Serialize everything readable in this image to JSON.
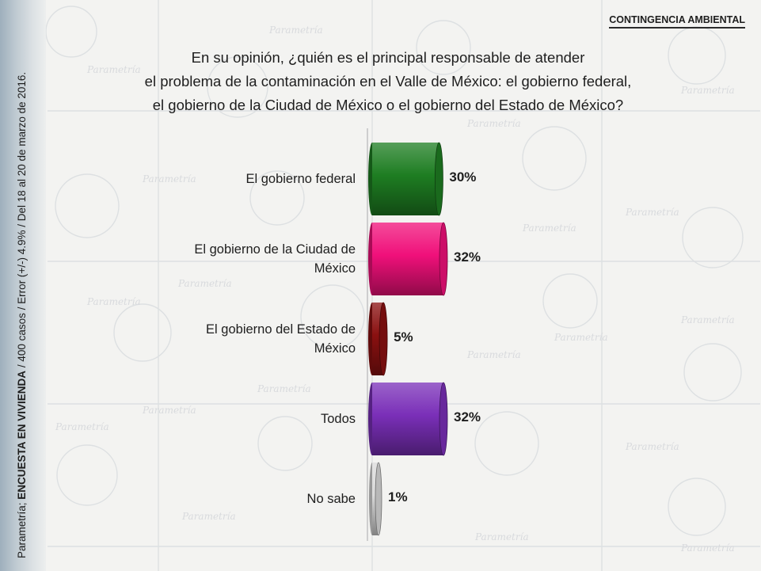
{
  "header": {
    "tag": "CONTINGENCIA AMBIENTAL",
    "question_lines": [
      "En su opinión, ¿quién es el principal responsable de atender",
      "el problema de la contaminación en el Valle de México: el gobierno federal,",
      "el gobierno de la Ciudad de México o el gobierno del Estado de México?"
    ]
  },
  "source": {
    "prefix": "Parametría; ",
    "survey": "ENCUESTA EN VIVIENDA",
    "details": " / 400 casos / Error (+/-) 4.9% / Del 18 al 20 de marzo de 2016."
  },
  "watermark": {
    "text": "Parametría"
  },
  "chart_data": {
    "type": "bar",
    "orientation": "horizontal",
    "categories": [
      "El gobierno federal",
      "El gobierno de la Ciudad de México",
      "El gobierno del Estado de México",
      "Todos",
      "No sabe"
    ],
    "category_label_lines": [
      [
        "El gobierno federal"
      ],
      [
        "El gobierno de la Ciudad de",
        "México"
      ],
      [
        "El gobierno del Estado de",
        "México"
      ],
      [
        "Todos"
      ],
      [
        "No sabe"
      ]
    ],
    "values": [
      30,
      32,
      5,
      32,
      1
    ],
    "value_labels": [
      "30%",
      "32%",
      "5%",
      "32%",
      "1%"
    ],
    "colors": [
      "#1e7d22",
      "#f0107a",
      "#8a1010",
      "#7a2fb8",
      "#d9d9d9"
    ],
    "xlim": [
      0,
      35
    ],
    "grid": false,
    "legend": "none"
  }
}
